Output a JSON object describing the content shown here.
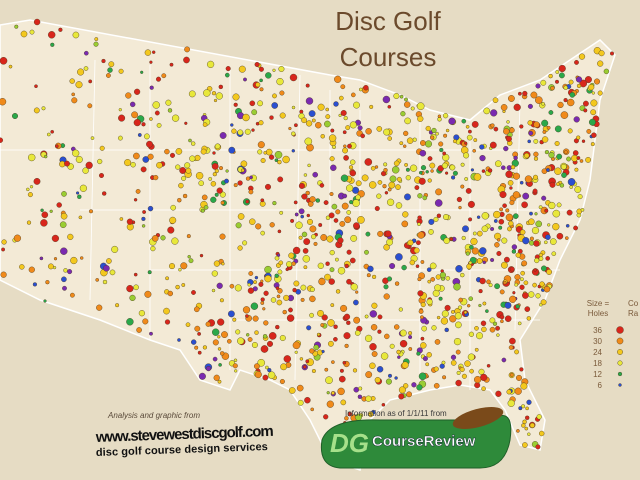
{
  "title": [
    "Disc Golf",
    "Courses"
  ],
  "legend": {
    "size_header": [
      "Size =",
      "Holes"
    ],
    "color_header": [
      "Co",
      "Ra"
    ],
    "holes": [
      "36",
      "30",
      "24",
      "18",
      "12",
      "6"
    ]
  },
  "credits": {
    "analysis": "Analysis and graphic from",
    "site": "www.stevewestdiscgolf.com",
    "tagline": "disc golf course design services",
    "info": "Information as of 1/1/11 from",
    "logo_initials": "DG",
    "logo_name": "CourseReview"
  }
}
